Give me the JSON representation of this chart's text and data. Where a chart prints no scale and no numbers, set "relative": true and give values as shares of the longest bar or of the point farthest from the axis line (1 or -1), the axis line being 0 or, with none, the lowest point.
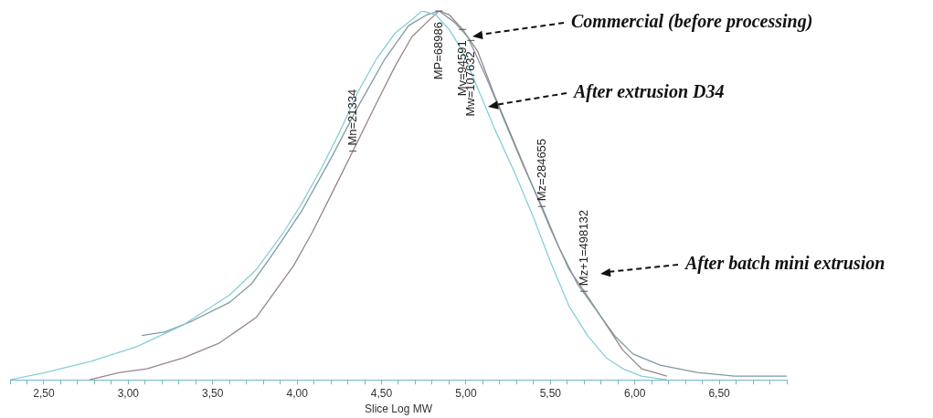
{
  "chart_data": {
    "type": "line",
    "relative": true,
    "xlabel": "Slice Log MW",
    "xlim": [
      2.3,
      6.9
    ],
    "xticks": [
      {
        "value": 2.3,
        "label": null
      },
      {
        "value": 2.4,
        "label": null
      },
      {
        "value": 2.5,
        "label": "2,50"
      },
      {
        "value": 2.6,
        "label": null
      },
      {
        "value": 2.7,
        "label": null
      },
      {
        "value": 2.8,
        "label": null
      },
      {
        "value": 2.9,
        "label": null
      },
      {
        "value": 3.0,
        "label": "3,00"
      },
      {
        "value": 3.1,
        "label": null
      },
      {
        "value": 3.2,
        "label": null
      },
      {
        "value": 3.3,
        "label": null
      },
      {
        "value": 3.4,
        "label": null
      },
      {
        "value": 3.5,
        "label": "3,50"
      },
      {
        "value": 3.6,
        "label": null
      },
      {
        "value": 3.7,
        "label": null
      },
      {
        "value": 3.8,
        "label": null
      },
      {
        "value": 3.9,
        "label": null
      },
      {
        "value": 4.0,
        "label": "4,00"
      },
      {
        "value": 4.1,
        "label": null
      },
      {
        "value": 4.2,
        "label": null
      },
      {
        "value": 4.3,
        "label": null
      },
      {
        "value": 4.4,
        "label": null
      },
      {
        "value": 4.5,
        "label": "4,50"
      },
      {
        "value": 4.6,
        "label": null
      },
      {
        "value": 4.7,
        "label": null
      },
      {
        "value": 4.8,
        "label": null
      },
      {
        "value": 4.9,
        "label": null
      },
      {
        "value": 5.0,
        "label": "5,00"
      },
      {
        "value": 5.1,
        "label": null
      },
      {
        "value": 5.2,
        "label": null
      },
      {
        "value": 5.3,
        "label": null
      },
      {
        "value": 5.4,
        "label": null
      },
      {
        "value": 5.5,
        "label": "5,50"
      },
      {
        "value": 5.6,
        "label": null
      },
      {
        "value": 5.7,
        "label": null
      },
      {
        "value": 5.8,
        "label": null
      },
      {
        "value": 5.9,
        "label": null
      },
      {
        "value": 6.0,
        "label": "6,00"
      },
      {
        "value": 6.1,
        "label": null
      },
      {
        "value": 6.2,
        "label": null
      },
      {
        "value": 6.3,
        "label": null
      },
      {
        "value": 6.4,
        "label": null
      },
      {
        "value": 6.5,
        "label": "6,50"
      },
      {
        "value": 6.6,
        "label": null
      },
      {
        "value": 6.7,
        "label": null
      },
      {
        "value": 6.8,
        "label": null
      },
      {
        "value": 6.9,
        "label": null
      }
    ],
    "grid": false,
    "legend": false,
    "marker": "none",
    "line_style": "solid",
    "series": [
      {
        "color": "#86cfd9",
        "x": [
          2.3,
          2.51,
          2.78,
          3.05,
          3.33,
          3.6,
          3.76,
          3.92,
          4.03,
          4.14,
          4.25,
          4.36,
          4.47,
          4.58,
          4.69,
          4.74,
          4.82,
          4.9,
          4.98,
          5.07,
          5.18,
          5.29,
          5.4,
          5.5,
          5.61,
          5.72,
          5.83,
          5.93,
          6.04,
          6.19
        ],
        "values": [
          0,
          0.02,
          0.05,
          0.09,
          0.15,
          0.23,
          0.3,
          0.4,
          0.48,
          0.57,
          0.67,
          0.78,
          0.87,
          0.94,
          0.98,
          1,
          0.99,
          0.95,
          0.89,
          0.79,
          0.67,
          0.56,
          0.44,
          0.32,
          0.2,
          0.12,
          0.06,
          0.03,
          0.01,
          0
        ]
      },
      {
        "color": "#7f9aa3",
        "x": [
          3.08,
          3.22,
          3.38,
          3.6,
          3.73,
          3.87,
          4.03,
          4.2,
          4.36,
          4.52,
          4.66,
          4.77,
          4.84,
          4.93,
          5.01,
          5.12,
          5.23,
          5.34,
          5.45,
          5.55,
          5.66,
          5.77,
          5.88,
          5.99,
          6.15,
          6.37,
          6.59,
          6.9
        ],
        "values": [
          0.12,
          0.13,
          0.16,
          0.21,
          0.26,
          0.35,
          0.46,
          0.6,
          0.74,
          0.87,
          0.96,
          0.99,
          1,
          0.97,
          0.93,
          0.82,
          0.7,
          0.58,
          0.47,
          0.36,
          0.26,
          0.19,
          0.12,
          0.07,
          0.04,
          0.02,
          0.01,
          0.01
        ]
      },
      {
        "color": "#9a8588",
        "x": [
          2.77,
          2.95,
          3.11,
          3.33,
          3.54,
          3.76,
          3.87,
          3.98,
          4.09,
          4.2,
          4.33,
          4.47,
          4.58,
          4.68,
          4.77,
          4.84,
          4.9,
          4.98,
          5.07,
          5.17,
          5.28,
          5.39,
          5.5,
          5.61,
          5.7,
          5.83,
          5.93,
          6.04,
          6.19
        ],
        "values": [
          0,
          0.02,
          0.03,
          0.06,
          0.1,
          0.17,
          0.24,
          0.31,
          0.4,
          0.5,
          0.62,
          0.75,
          0.85,
          0.93,
          0.97,
          1,
          0.99,
          0.95,
          0.89,
          0.77,
          0.65,
          0.53,
          0.41,
          0.3,
          0.24,
          0.15,
          0.08,
          0.03,
          0.01
        ]
      }
    ],
    "annotations": [
      {
        "text": "Mn=21334",
        "x": 4.33,
        "y": 0.62
      },
      {
        "text": "MP=68986",
        "x": 4.84,
        "y": 1
      },
      {
        "text": "Mv=94591",
        "x": 4.98,
        "y": 0.95
      },
      {
        "text": "Mw=107632",
        "x": 5.03,
        "y": 0.92
      },
      {
        "text": "Mz=284655",
        "x": 5.45,
        "y": 0.47
      },
      {
        "text": "Mz+1=498132",
        "x": 5.7,
        "y": 0.24
      },
      "Commercial (before processing)",
      "After extrusion D34",
      "After batch mini extrusion"
    ]
  }
}
